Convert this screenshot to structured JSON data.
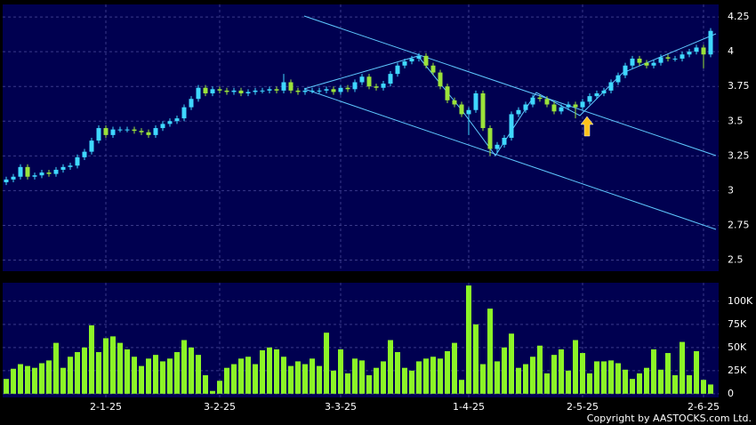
{
  "chart_data": [
    {
      "type": "candlestick",
      "open": [
        3.06,
        3.08,
        3.1,
        3.17,
        3.1,
        3.11,
        3.13,
        3.12,
        3.15,
        3.17,
        3.18,
        3.24,
        3.28,
        3.36,
        3.45,
        3.4,
        3.44,
        3.44,
        3.44,
        3.43,
        3.42,
        3.4,
        3.45,
        3.48,
        3.5,
        3.52,
        3.6,
        3.66,
        3.74,
        3.7,
        3.73,
        3.72,
        3.71,
        3.72,
        3.7,
        3.71,
        3.72,
        3.72,
        3.73,
        3.72,
        3.78,
        3.72,
        3.71,
        3.72,
        3.72,
        3.72,
        3.73,
        3.71,
        3.74,
        3.73,
        3.78,
        3.82,
        3.75,
        3.74,
        3.77,
        3.84,
        3.9,
        3.93,
        3.95,
        3.97,
        3.9,
        3.85,
        3.75,
        3.65,
        3.62,
        3.55,
        3.58,
        3.7,
        3.45,
        3.3,
        3.33,
        3.38,
        3.55,
        3.58,
        3.62,
        3.67,
        3.66,
        3.62,
        3.57,
        3.6,
        3.62,
        3.6,
        3.64,
        3.68,
        3.7,
        3.72,
        3.78,
        3.83,
        3.9,
        3.95,
        3.92,
        3.9,
        3.92,
        3.96,
        3.95,
        3.95,
        3.98,
        4.0,
        4.03,
        3.98
      ],
      "high": [
        3.1,
        3.12,
        3.19,
        3.19,
        3.13,
        3.15,
        3.15,
        3.17,
        3.19,
        3.2,
        3.26,
        3.3,
        3.38,
        3.47,
        3.47,
        3.46,
        3.46,
        3.46,
        3.46,
        3.45,
        3.44,
        3.47,
        3.5,
        3.52,
        3.54,
        3.62,
        3.68,
        3.76,
        3.76,
        3.75,
        3.75,
        3.74,
        3.74,
        3.74,
        3.73,
        3.74,
        3.74,
        3.75,
        3.75,
        3.84,
        3.8,
        3.74,
        3.74,
        3.74,
        3.74,
        3.75,
        3.75,
        3.76,
        3.76,
        3.8,
        3.84,
        3.84,
        3.77,
        3.79,
        3.86,
        3.92,
        3.95,
        3.97,
        3.99,
        3.99,
        3.92,
        3.87,
        3.77,
        3.67,
        3.64,
        3.6,
        3.72,
        3.72,
        3.47,
        3.35,
        3.4,
        3.57,
        3.6,
        3.64,
        3.69,
        3.69,
        3.68,
        3.64,
        3.62,
        3.64,
        3.64,
        3.66,
        3.7,
        3.72,
        3.74,
        3.8,
        3.85,
        3.92,
        3.97,
        3.97,
        3.94,
        3.94,
        3.98,
        3.98,
        3.97,
        4.0,
        4.02,
        4.05,
        4.05,
        4.17
      ],
      "low": [
        3.04,
        3.06,
        3.08,
        3.08,
        3.08,
        3.09,
        3.1,
        3.1,
        3.13,
        3.15,
        3.16,
        3.22,
        3.26,
        3.34,
        3.38,
        3.38,
        3.42,
        3.42,
        3.41,
        3.4,
        3.38,
        3.38,
        3.43,
        3.46,
        3.48,
        3.5,
        3.58,
        3.64,
        3.68,
        3.68,
        3.7,
        3.69,
        3.69,
        3.68,
        3.68,
        3.69,
        3.7,
        3.7,
        3.7,
        3.7,
        3.7,
        3.69,
        3.69,
        3.7,
        3.7,
        3.7,
        3.69,
        3.69,
        3.71,
        3.71,
        3.76,
        3.73,
        3.72,
        3.72,
        3.75,
        3.82,
        3.88,
        3.91,
        3.93,
        3.88,
        3.83,
        3.73,
        3.63,
        3.6,
        3.53,
        3.4,
        3.56,
        3.43,
        3.25,
        3.27,
        3.31,
        3.36,
        3.53,
        3.56,
        3.6,
        3.64,
        3.6,
        3.55,
        3.55,
        3.58,
        3.52,
        3.58,
        3.62,
        3.66,
        3.68,
        3.7,
        3.76,
        3.81,
        3.88,
        3.9,
        3.88,
        3.88,
        3.9,
        3.93,
        3.93,
        3.93,
        3.96,
        3.98,
        3.88,
        3.96
      ],
      "close": [
        3.08,
        3.1,
        3.17,
        3.1,
        3.11,
        3.13,
        3.12,
        3.15,
        3.17,
        3.18,
        3.24,
        3.28,
        3.36,
        3.45,
        3.4,
        3.44,
        3.44,
        3.44,
        3.43,
        3.42,
        3.4,
        3.45,
        3.48,
        3.5,
        3.52,
        3.6,
        3.66,
        3.74,
        3.7,
        3.73,
        3.72,
        3.71,
        3.72,
        3.7,
        3.71,
        3.72,
        3.72,
        3.73,
        3.72,
        3.78,
        3.72,
        3.71,
        3.72,
        3.72,
        3.72,
        3.73,
        3.71,
        3.74,
        3.73,
        3.78,
        3.82,
        3.75,
        3.74,
        3.77,
        3.84,
        3.9,
        3.93,
        3.95,
        3.97,
        3.9,
        3.85,
        3.75,
        3.65,
        3.62,
        3.55,
        3.58,
        3.7,
        3.45,
        3.3,
        3.33,
        3.38,
        3.55,
        3.58,
        3.62,
        3.67,
        3.66,
        3.62,
        3.57,
        3.6,
        3.62,
        3.6,
        3.64,
        3.68,
        3.7,
        3.72,
        3.78,
        3.83,
        3.9,
        3.95,
        3.92,
        3.9,
        3.92,
        3.96,
        3.95,
        3.95,
        3.98,
        4.0,
        4.03,
        3.98,
        4.15
      ],
      "up_color": "#3fd8ff",
      "down_color": "#9be33a",
      "ylim": [
        2.42,
        4.34
      ],
      "yticks": [
        2.5,
        2.75,
        3,
        3.25,
        3.5,
        3.75,
        4,
        4.25
      ],
      "grid": true
    },
    {
      "type": "bar",
      "categories": [
        null,
        null,
        null,
        null,
        null,
        null,
        null,
        null,
        null,
        null,
        null,
        null,
        null,
        null,
        "2-1-25",
        null,
        null,
        null,
        null,
        null,
        null,
        null,
        null,
        null,
        null,
        null,
        null,
        null,
        null,
        null,
        "3-2-25",
        null,
        null,
        null,
        null,
        null,
        null,
        null,
        null,
        null,
        null,
        null,
        null,
        null,
        null,
        null,
        null,
        "3-3-25",
        null,
        null,
        null,
        null,
        null,
        null,
        null,
        null,
        null,
        null,
        null,
        null,
        null,
        null,
        null,
        null,
        null,
        "1-4-25",
        null,
        null,
        null,
        null,
        null,
        null,
        null,
        null,
        null,
        null,
        null,
        null,
        null,
        null,
        null,
        "2-5-25",
        null,
        null,
        null,
        null,
        null,
        null,
        null,
        null,
        null,
        null,
        null,
        null,
        null,
        null,
        null,
        null,
        "2-6-25",
        null
      ],
      "values": [
        16000,
        27000,
        32000,
        30000,
        28000,
        33000,
        36000,
        55000,
        28000,
        40000,
        45000,
        50000,
        74000,
        45000,
        60000,
        62000,
        55000,
        48000,
        40000,
        30000,
        38000,
        42000,
        35000,
        38000,
        45000,
        58000,
        50000,
        42000,
        20000,
        3000,
        14000,
        28000,
        32000,
        38000,
        40000,
        32000,
        47000,
        50000,
        48000,
        40000,
        30000,
        35000,
        32000,
        38000,
        30000,
        66000,
        25000,
        48000,
        22000,
        38000,
        36000,
        20000,
        28000,
        35000,
        58000,
        45000,
        28000,
        25000,
        35000,
        38000,
        40000,
        38000,
        46000,
        55000,
        15000,
        117000,
        75000,
        32000,
        92000,
        35000,
        50000,
        65000,
        28000,
        32000,
        40000,
        52000,
        22000,
        42000,
        48000,
        25000,
        58000,
        44000,
        22000,
        35000,
        35000,
        36000,
        33000,
        26000,
        16000,
        22000,
        28000,
        48000,
        26000,
        44000,
        20000,
        56000,
        20000,
        46000,
        15000,
        10000
      ],
      "color": "#8cf527",
      "ylim": [
        -4000,
        120000
      ],
      "yticks": [
        0,
        {
          "value": 25000,
          "label": "25K"
        },
        {
          "value": 50000,
          "label": "50K"
        },
        {
          "value": 75000,
          "label": "75K"
        },
        {
          "value": 100000,
          "label": "100K"
        }
      ],
      "grid": true,
      "footnote": "Copyright by AASTOCKS.com Ltd."
    }
  ]
}
